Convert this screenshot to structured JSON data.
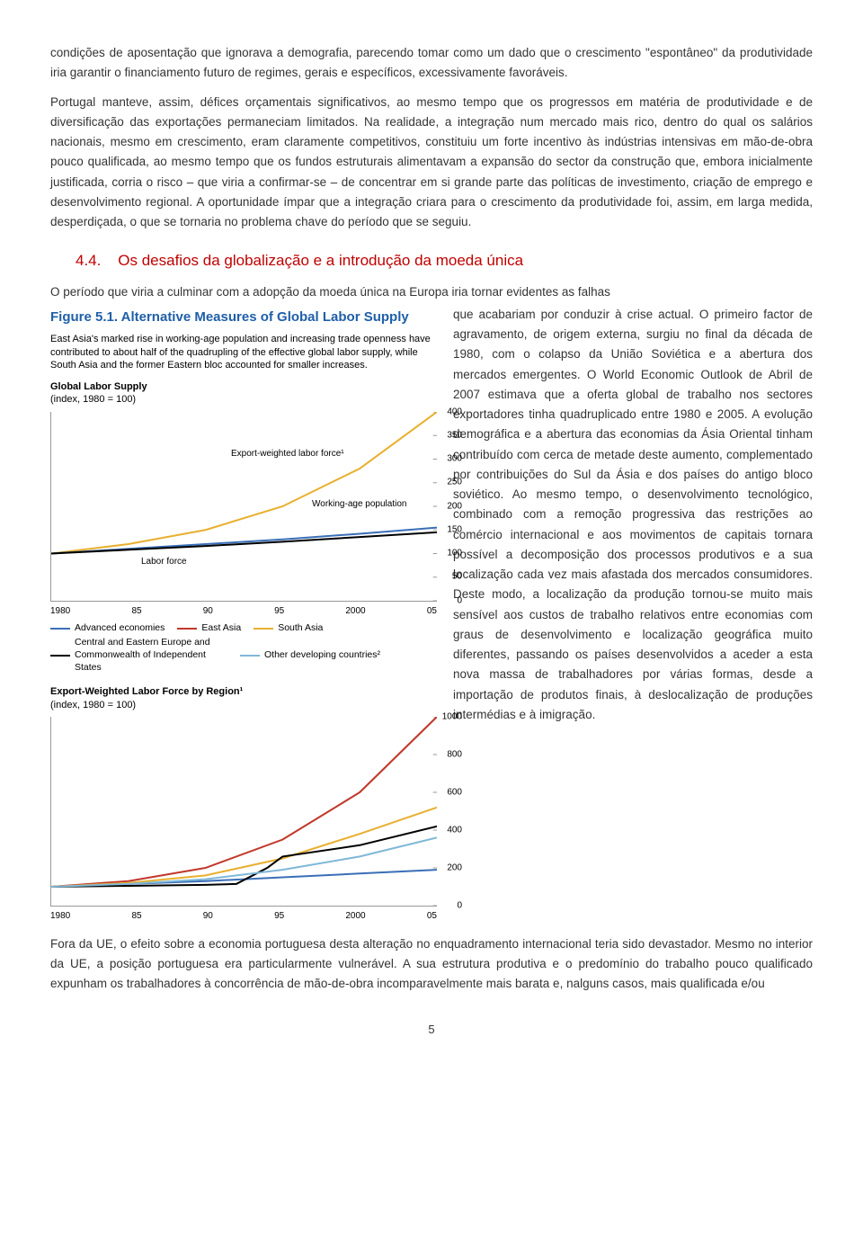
{
  "para1": "condições de aposentação que ignorava a demografia, parecendo tomar como um dado que o crescimento \"espontâneo\" da produtividade iria garantir o financiamento futuro de regimes, gerais e específicos, excessivamente favoráveis.",
  "para2": "Portugal manteve, assim, défices orçamentais significativos, ao mesmo tempo que os progressos em matéria de produtividade e de diversificação das exportações permaneciam limitados. Na realidade, a integração num mercado mais rico, dentro do qual os salários nacionais, mesmo em crescimento, eram claramente competitivos, constituiu um forte incentivo às indústrias intensivas em mão-de-obra pouco qualificada, ao mesmo tempo que os fundos estruturais alimentavam a expansão do sector da construção que, embora inicialmente justificada, corria o risco – que viria a confirmar-se – de concentrar em si grande parte das políticas de investimento, criação de emprego e desenvolvimento regional. A oportunidade ímpar que a integração criara para o crescimento da produtividade foi, assim, em larga medida, desperdiçada, o que se tornaria no problema chave do período que se seguiu.",
  "sectionNumber": "4.4.",
  "sectionTitle": "Os desafios da globalização e a introdução da moeda única",
  "para3a": "O período que viria a culminar com a adopção da moeda única na Europa iria tornar evidentes as falhas",
  "para3b": "que acabariam por conduzir à crise actual. O primeiro factor de agravamento, de origem externa, surgiu no final da década de 1980, com o colapso da União Soviética e a abertura dos mercados emergentes. O World Economic Outlook de Abril de 2007 estimava que a oferta global de trabalho nos sectores exportadores tinha quadruplicado entre 1980 e 2005. A evolução demográfica e a abertura das economias da Ásia Oriental tinham contribuído com cerca de metade deste aumento, complementado por contribuições do Sul da Ásia e dos países do antigo bloco soviético. Ao mesmo tempo, o desenvolvimento tecnológico, combinado com a remoção progressiva das restrições ao comércio internacional e aos movimentos de capitais tornara possível a decomposição dos processos produtivos e a sua localização cada vez mais afastada dos mercados consumidores. Deste modo, a localização da produção tornou-se muito mais sensível aos custos de trabalho relativos entre economias com graus de desenvolvimento e localização geográfica muito diferentes, passando os países desenvolvidos a aceder a esta nova massa de trabalhadores por várias formas, desde a importação de produtos finais, à deslocalização de produções intermédias e à imigração.",
  "para4": "Fora da UE, o efeito sobre a economia portuguesa desta alteração no enquadramento internacional teria sido devastador. Mesmo no interior da UE, a posição portuguesa era particularmente vulnerável. A sua estrutura produtiva e o predomínio do trabalho pouco qualificado expunham os trabalhadores à concorrência de mão-de-obra incomparavelmente mais barata e, nalguns casos, mais qualificada e/ou",
  "pagenum": "5",
  "figure": {
    "title": "Figure 5.1.  Alternative Measures of Global Labor Supply",
    "caption": "East Asia's marked rise in working-age population and increasing trade openness have contributed to about half of the quadrupling of the effective global labor supply, while South Asia and the former Eastern bloc accounted for smaller increases.",
    "chart1": {
      "subhead": "Global Labor Supply",
      "subnote": "(index, 1980 = 100)",
      "annot_export": "Export-weighted labor force¹",
      "annot_wap": "Working-age population",
      "annot_lf": "Labor force",
      "xticks": [
        "1980",
        "85",
        "90",
        "95",
        "2000",
        "05"
      ],
      "ylim": [
        0,
        400
      ],
      "yticks": [
        0,
        50,
        100,
        150,
        200,
        250,
        300,
        350,
        400
      ],
      "series": {
        "exportWeighted": {
          "color": "#e8b030",
          "points": [
            [
              0,
              100
            ],
            [
              5,
              120
            ],
            [
              10,
              150
            ],
            [
              15,
              200
            ],
            [
              20,
              280
            ],
            [
              25,
              400
            ]
          ]
        },
        "workingAge": {
          "color": "#3a6fb7",
          "points": [
            [
              0,
              100
            ],
            [
              5,
              110
            ],
            [
              10,
              120
            ],
            [
              15,
              130
            ],
            [
              20,
              142
            ],
            [
              25,
              155
            ]
          ]
        },
        "laborForce": {
          "color": "#000000",
          "points": [
            [
              0,
              100
            ],
            [
              5,
              108
            ],
            [
              10,
              116
            ],
            [
              15,
              125
            ],
            [
              20,
              135
            ],
            [
              25,
              145
            ]
          ]
        }
      }
    },
    "legend": [
      {
        "label": "Advanced economies",
        "color": "#3a6fb7"
      },
      {
        "label": "East Asia",
        "color": "#c0392b"
      },
      {
        "label": "South Asia",
        "color": "#e8b030"
      },
      {
        "label": "Central and Eastern Europe and Commonwealth of Independent States",
        "color": "#000000"
      },
      {
        "label": "Other developing countries²",
        "color": "#7fb8d8"
      }
    ],
    "chart2": {
      "subhead": "Export-Weighted Labor Force by Region¹",
      "subnote": "(index, 1980 = 100)",
      "xticks": [
        "1980",
        "85",
        "90",
        "95",
        "2000",
        "05"
      ],
      "ylim": [
        0,
        1000
      ],
      "yticks": [
        0,
        200,
        400,
        600,
        800,
        1000
      ],
      "series": {
        "adv": {
          "color": "#3a6fb7",
          "points": [
            [
              0,
              100
            ],
            [
              5,
              115
            ],
            [
              10,
              130
            ],
            [
              15,
              150
            ],
            [
              20,
              170
            ],
            [
              25,
              190
            ]
          ]
        },
        "east": {
          "color": "#c0392b",
          "points": [
            [
              0,
              100
            ],
            [
              5,
              130
            ],
            [
              10,
              200
            ],
            [
              15,
              350
            ],
            [
              20,
              600
            ],
            [
              25,
              1000
            ]
          ]
        },
        "south": {
          "color": "#e8b030",
          "points": [
            [
              0,
              100
            ],
            [
              5,
              120
            ],
            [
              10,
              160
            ],
            [
              15,
              250
            ],
            [
              20,
              380
            ],
            [
              25,
              520
            ]
          ]
        },
        "cee": {
          "color": "#000000",
          "points": [
            [
              0,
              100
            ],
            [
              5,
              105
            ],
            [
              10,
              110
            ],
            [
              12,
              115
            ],
            [
              14,
              200
            ],
            [
              15,
              260
            ],
            [
              20,
              320
            ],
            [
              25,
              420
            ]
          ]
        },
        "other": {
          "color": "#7fb8d8",
          "points": [
            [
              0,
              100
            ],
            [
              5,
              115
            ],
            [
              10,
              140
            ],
            [
              15,
              190
            ],
            [
              20,
              260
            ],
            [
              25,
              360
            ]
          ]
        }
      }
    }
  }
}
